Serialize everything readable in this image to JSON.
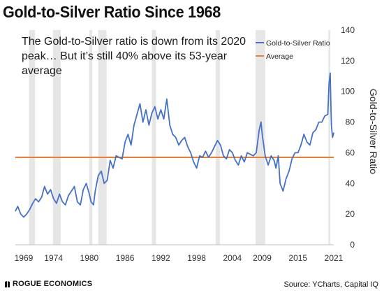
{
  "title": "Gold-to-Silver Ratio Since 1968",
  "annotation": "The Gold-to-Silver ratio is down from its 2020 peak… But it’s still 40% above its 53-year average",
  "footer": {
    "brand": "ROGUE ECONOMICS",
    "source": "Source: YCharts, Capital IQ"
  },
  "colors": {
    "ratio_line": "#4472C4",
    "average_line": "#ED7D31",
    "recession_shading": "#E6E6E6"
  },
  "chart_data": {
    "type": "line",
    "title": "Gold-to-Silver Ratio Since 1968",
    "ylabel": "Gold-to-Silver Ratio",
    "xlabel": "",
    "ylim": [
      0,
      140
    ],
    "xlim": [
      1967.6,
      2021.0
    ],
    "y_ticks": [
      0,
      20,
      40,
      60,
      80,
      100,
      120,
      140
    ],
    "x_tick_labels": [
      "1969",
      "1974",
      "1980",
      "1986",
      "1992",
      "1998",
      "2004",
      "2009",
      "2015",
      "2021"
    ],
    "x_tick_values": [
      1969,
      1974,
      1980,
      1986,
      1992,
      1998,
      2004,
      2009,
      2015,
      2021
    ],
    "y_axis_position": "right",
    "legend_position": "top-right",
    "grid": false,
    "shaded_periods": [
      [
        1969.9,
        1970.9
      ],
      [
        1973.9,
        1975.2
      ],
      [
        1980.0,
        1980.5
      ],
      [
        1981.5,
        1982.9
      ],
      [
        1990.5,
        1991.2
      ],
      [
        2001.2,
        2001.9
      ],
      [
        2007.9,
        2009.5
      ],
      [
        2020.1,
        2020.4
      ]
    ],
    "series": [
      {
        "name": "Gold-to-Silver Ratio",
        "kind": "line",
        "x": [
          1967.6,
          1968.0,
          1968.5,
          1969.0,
          1969.5,
          1970.0,
          1970.5,
          1971.0,
          1971.5,
          1972.0,
          1972.5,
          1973.0,
          1973.5,
          1974.0,
          1974.5,
          1975.0,
          1975.5,
          1976.0,
          1976.5,
          1977.0,
          1977.5,
          1978.0,
          1978.5,
          1979.0,
          1979.5,
          1980.0,
          1980.3,
          1980.7,
          1981.0,
          1981.5,
          1982.0,
          1982.5,
          1983.0,
          1983.5,
          1984.0,
          1984.5,
          1985.0,
          1985.5,
          1986.0,
          1986.5,
          1987.0,
          1987.5,
          1988.0,
          1988.5,
          1989.0,
          1989.5,
          1990.0,
          1990.5,
          1991.0,
          1991.5,
          1992.0,
          1992.5,
          1993.0,
          1993.5,
          1994.0,
          1994.5,
          1995.0,
          1995.5,
          1996.0,
          1996.5,
          1997.0,
          1997.5,
          1998.0,
          1998.5,
          1999.0,
          1999.5,
          2000.0,
          2000.5,
          2001.0,
          2001.5,
          2002.0,
          2002.5,
          2003.0,
          2003.5,
          2004.0,
          2004.5,
          2005.0,
          2005.5,
          2006.0,
          2006.5,
          2007.0,
          2007.5,
          2008.0,
          2008.5,
          2008.8,
          2009.0,
          2009.5,
          2010.0,
          2010.5,
          2011.0,
          2011.3,
          2011.7,
          2012.0,
          2012.5,
          2013.0,
          2013.5,
          2014.0,
          2014.5,
          2015.0,
          2015.5,
          2016.0,
          2016.5,
          2017.0,
          2017.5,
          2018.0,
          2018.5,
          2019.0,
          2019.5,
          2020.0,
          2020.2,
          2020.4,
          2020.6,
          2020.8,
          2021.0
        ],
        "values": [
          22,
          25,
          20,
          18,
          20,
          23,
          27,
          30,
          28,
          31,
          38,
          33,
          36,
          30,
          27,
          33,
          28,
          26,
          32,
          35,
          38,
          28,
          26,
          36,
          40,
          33,
          28,
          26,
          35,
          45,
          48,
          40,
          42,
          55,
          50,
          58,
          57,
          56,
          67,
          72,
          65,
          78,
          85,
          92,
          80,
          88,
          78,
          86,
          90,
          82,
          88,
          82,
          95,
          78,
          72,
          70,
          65,
          68,
          70,
          64,
          60,
          54,
          50,
          58,
          57,
          61,
          57,
          60,
          64,
          68,
          65,
          58,
          56,
          62,
          60,
          55,
          52,
          58,
          54,
          60,
          59,
          58,
          60,
          75,
          80,
          72,
          58,
          52,
          58,
          55,
          50,
          58,
          40,
          35,
          43,
          48,
          56,
          60,
          60,
          65,
          72,
          67,
          65,
          73,
          75,
          80,
          80,
          84,
          85,
          105,
          112,
          78,
          70,
          73
        ]
      },
      {
        "name": "Average",
        "kind": "constant",
        "value": 57
      }
    ]
  }
}
